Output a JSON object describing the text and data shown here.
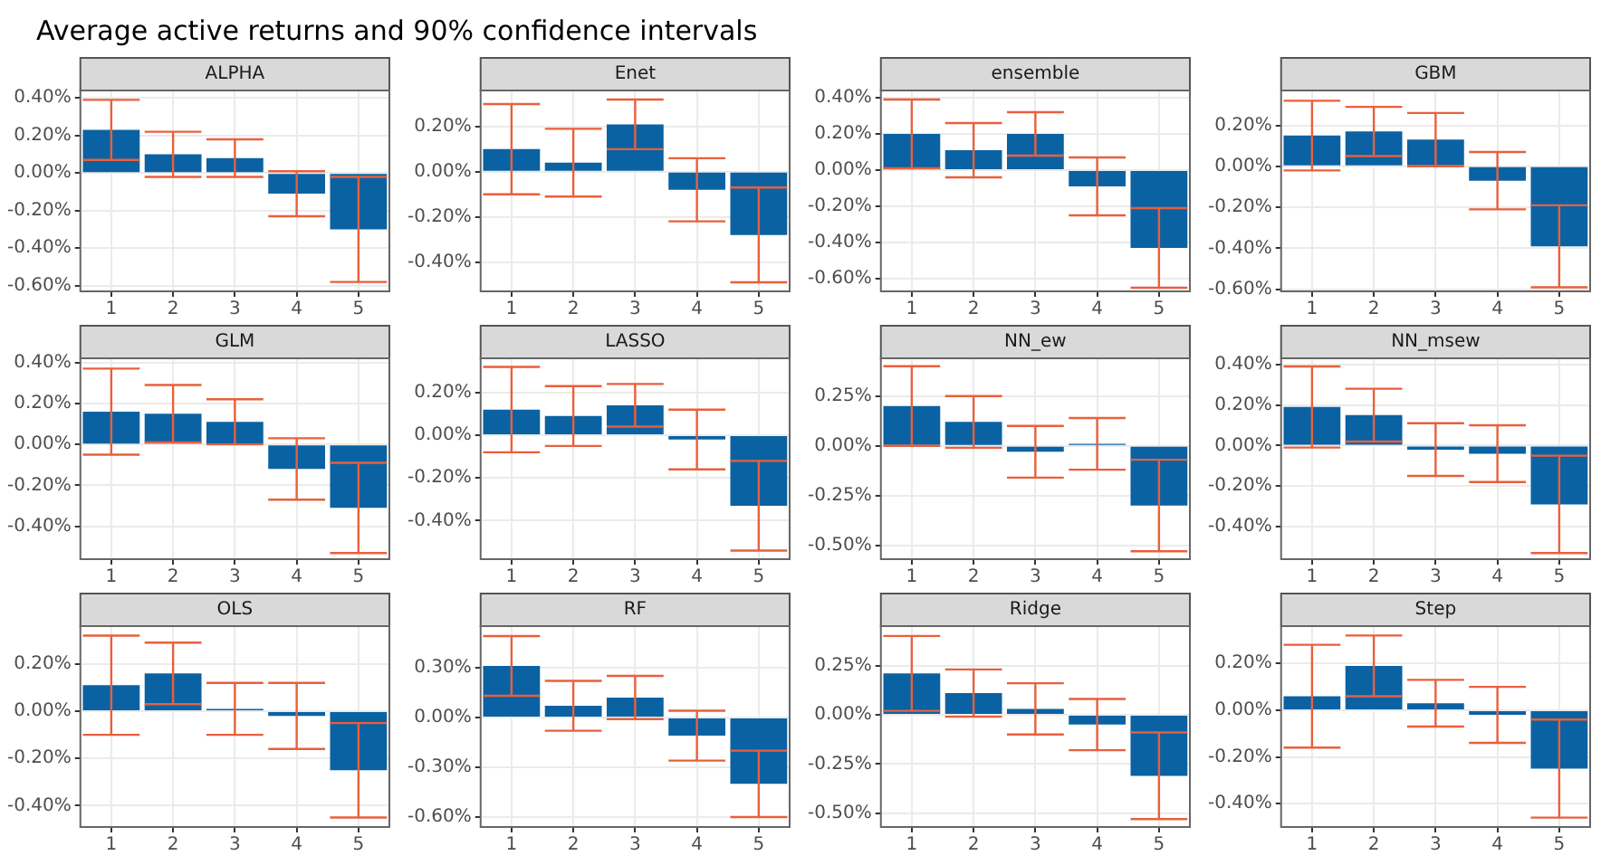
{
  "chart_data": [
    {
      "type": "bar",
      "title": "ALPHA",
      "annotations": [
        "Average active returns and 90% confidence intervals"
      ],
      "categories": [
        "1",
        "2",
        "3",
        "4",
        "5"
      ],
      "values": [
        0.23,
        0.1,
        0.08,
        -0.11,
        -0.3
      ],
      "errors": [
        0.16,
        0.12,
        0.1,
        0.12,
        0.28
      ],
      "color": "#0a62a3",
      "ylim": [
        -0.63,
        0.44
      ],
      "yticks": [
        {
          "value": -0.6,
          "label": "-0.60%"
        },
        {
          "value": -0.4,
          "label": "-0.40%"
        },
        {
          "value": -0.2,
          "label": "-0.20%"
        },
        {
          "value": 0,
          "label": "0.00%"
        },
        {
          "value": 0.2,
          "label": "0.20%"
        },
        {
          "value": 0.4,
          "label": "0.40%"
        }
      ],
      "grid": true
    },
    {
      "type": "bar",
      "title": "Enet",
      "categories": [
        "1",
        "2",
        "3",
        "4",
        "5"
      ],
      "values": [
        0.1,
        0.04,
        0.21,
        -0.08,
        -0.28
      ],
      "errors": [
        0.2,
        0.15,
        0.11,
        0.14,
        0.21
      ],
      "color": "#0a62a3",
      "ylim": [
        -0.53,
        0.36
      ],
      "yticks": [
        {
          "value": -0.4,
          "label": "-0.40%"
        },
        {
          "value": -0.2,
          "label": "-0.20%"
        },
        {
          "value": 0,
          "label": "0.00%"
        },
        {
          "value": 0.2,
          "label": "0.20%"
        }
      ],
      "grid": true
    },
    {
      "type": "bar",
      "title": "ensemble",
      "categories": [
        "1",
        "2",
        "3",
        "4",
        "5"
      ],
      "values": [
        0.2,
        0.11,
        0.2,
        -0.09,
        -0.43
      ],
      "errors": [
        0.19,
        0.15,
        0.12,
        0.16,
        0.22
      ],
      "color": "#0a62a3",
      "ylim": [
        -0.67,
        0.44
      ],
      "yticks": [
        {
          "value": -0.6,
          "label": "-0.60%"
        },
        {
          "value": -0.4,
          "label": "-0.40%"
        },
        {
          "value": -0.2,
          "label": "-0.20%"
        },
        {
          "value": 0,
          "label": "0.00%"
        },
        {
          "value": 0.2,
          "label": "0.20%"
        },
        {
          "value": 0.4,
          "label": "0.40%"
        }
      ],
      "grid": true
    },
    {
      "type": "bar",
      "title": "GBM",
      "categories": [
        "1",
        "2",
        "3",
        "4",
        "5"
      ],
      "values": [
        0.15,
        0.17,
        0.13,
        -0.07,
        -0.39
      ],
      "errors": [
        0.17,
        0.12,
        0.13,
        0.14,
        0.2
      ],
      "color": "#0a62a3",
      "ylim": [
        -0.61,
        0.37
      ],
      "yticks": [
        {
          "value": -0.6,
          "label": "-0.60%"
        },
        {
          "value": -0.4,
          "label": "-0.40%"
        },
        {
          "value": -0.2,
          "label": "-0.20%"
        },
        {
          "value": 0,
          "label": "0.00%"
        },
        {
          "value": 0.2,
          "label": "0.20%"
        }
      ],
      "grid": true
    },
    {
      "type": "bar",
      "title": "GLM",
      "categories": [
        "1",
        "2",
        "3",
        "4",
        "5"
      ],
      "values": [
        0.16,
        0.15,
        0.11,
        -0.12,
        -0.31
      ],
      "errors": [
        0.21,
        0.14,
        0.11,
        0.15,
        0.22
      ],
      "color": "#0a62a3",
      "ylim": [
        -0.56,
        0.42
      ],
      "yticks": [
        {
          "value": -0.4,
          "label": "-0.40%"
        },
        {
          "value": -0.2,
          "label": "-0.20%"
        },
        {
          "value": 0,
          "label": "0.00%"
        },
        {
          "value": 0.2,
          "label": "0.20%"
        },
        {
          "value": 0.4,
          "label": "0.40%"
        }
      ],
      "grid": true
    },
    {
      "type": "bar",
      "title": "LASSO",
      "categories": [
        "1",
        "2",
        "3",
        "4",
        "5"
      ],
      "values": [
        0.12,
        0.09,
        0.14,
        -0.02,
        -0.33
      ],
      "errors": [
        0.2,
        0.14,
        0.1,
        0.14,
        0.21
      ],
      "color": "#0a62a3",
      "ylim": [
        -0.58,
        0.36
      ],
      "yticks": [
        {
          "value": -0.4,
          "label": "-0.40%"
        },
        {
          "value": -0.2,
          "label": "-0.20%"
        },
        {
          "value": 0,
          "label": "0.00%"
        },
        {
          "value": 0.2,
          "label": "0.20%"
        }
      ],
      "grid": true
    },
    {
      "type": "bar",
      "title": "NN_ew",
      "categories": [
        "1",
        "2",
        "3",
        "4",
        "5"
      ],
      "values": [
        0.2,
        0.12,
        -0.03,
        0.01,
        -0.3
      ],
      "errors": [
        0.2,
        0.13,
        0.13,
        0.13,
        0.23
      ],
      "color": "#0a62a3",
      "ylim": [
        -0.57,
        0.44
      ],
      "yticks": [
        {
          "value": -0.5,
          "label": "-0.50%"
        },
        {
          "value": -0.25,
          "label": "-0.25%"
        },
        {
          "value": 0,
          "label": "0.00%"
        },
        {
          "value": 0.25,
          "label": "0.25%"
        }
      ],
      "grid": true
    },
    {
      "type": "bar",
      "title": "NN_msew",
      "categories": [
        "1",
        "2",
        "3",
        "4",
        "5"
      ],
      "values": [
        0.19,
        0.15,
        -0.02,
        -0.04,
        -0.29
      ],
      "errors": [
        0.2,
        0.13,
        0.13,
        0.14,
        0.24
      ],
      "color": "#0a62a3",
      "ylim": [
        -0.56,
        0.43
      ],
      "yticks": [
        {
          "value": -0.4,
          "label": "-0.40%"
        },
        {
          "value": -0.2,
          "label": "-0.20%"
        },
        {
          "value": 0,
          "label": "0.00%"
        },
        {
          "value": 0.2,
          "label": "0.20%"
        },
        {
          "value": 0.4,
          "label": "0.40%"
        }
      ],
      "grid": true
    },
    {
      "type": "bar",
      "title": "OLS",
      "categories": [
        "1",
        "2",
        "3",
        "4",
        "5"
      ],
      "values": [
        0.11,
        0.16,
        0.01,
        -0.02,
        -0.25
      ],
      "errors": [
        0.21,
        0.13,
        0.11,
        0.14,
        0.2
      ],
      "color": "#0a62a3",
      "ylim": [
        -0.49,
        0.36
      ],
      "yticks": [
        {
          "value": -0.4,
          "label": "-0.40%"
        },
        {
          "value": -0.2,
          "label": "-0.20%"
        },
        {
          "value": 0,
          "label": "0.00%"
        },
        {
          "value": 0.2,
          "label": "0.20%"
        }
      ],
      "grid": true
    },
    {
      "type": "bar",
      "title": "RF",
      "categories": [
        "1",
        "2",
        "3",
        "4",
        "5"
      ],
      "values": [
        0.31,
        0.07,
        0.12,
        -0.11,
        -0.4
      ],
      "errors": [
        0.18,
        0.15,
        0.13,
        0.15,
        0.2
      ],
      "color": "#0a62a3",
      "ylim": [
        -0.66,
        0.55
      ],
      "yticks": [
        {
          "value": -0.6,
          "label": "-0.60%"
        },
        {
          "value": -0.3,
          "label": "-0.30%"
        },
        {
          "value": 0,
          "label": "0.00%"
        },
        {
          "value": 0.3,
          "label": "0.30%"
        }
      ],
      "grid": true
    },
    {
      "type": "bar",
      "title": "Ridge",
      "categories": [
        "1",
        "2",
        "3",
        "4",
        "5"
      ],
      "values": [
        0.21,
        0.11,
        0.03,
        -0.05,
        -0.31
      ],
      "errors": [
        0.19,
        0.12,
        0.13,
        0.13,
        0.22
      ],
      "color": "#0a62a3",
      "ylim": [
        -0.57,
        0.45
      ],
      "yticks": [
        {
          "value": -0.5,
          "label": "-0.50%"
        },
        {
          "value": -0.25,
          "label": "-0.25%"
        },
        {
          "value": 0,
          "label": "0.00%"
        },
        {
          "value": 0.25,
          "label": "0.25%"
        }
      ],
      "grid": true
    },
    {
      "type": "bar",
      "title": "Step",
      "categories": [
        "1",
        "2",
        "3",
        "4",
        "5"
      ],
      "values": [
        0.06,
        0.19,
        0.03,
        -0.02,
        -0.25
      ],
      "errors": [
        0.22,
        0.13,
        0.1,
        0.12,
        0.21
      ],
      "color": "#0a62a3",
      "ylim": [
        -0.5,
        0.36
      ],
      "yticks": [
        {
          "value": -0.4,
          "label": "-0.40%"
        },
        {
          "value": -0.2,
          "label": "-0.20%"
        },
        {
          "value": 0,
          "label": "0.00%"
        },
        {
          "value": 0.2,
          "label": "0.20%"
        }
      ],
      "grid": true
    }
  ]
}
